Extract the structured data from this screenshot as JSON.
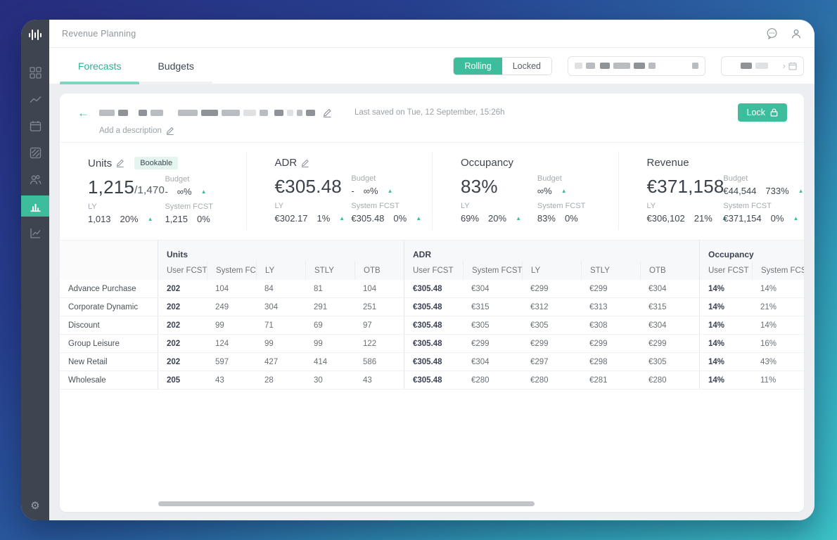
{
  "topbar": {
    "title": "Revenue Planning"
  },
  "tabs": {
    "forecasts": "Forecasts",
    "budgets": "Budgets"
  },
  "mode_toggle": {
    "rolling": "Rolling",
    "locked": "Locked"
  },
  "plan_header": {
    "last_saved": "Last saved on Tue, 12 September, 15:26h",
    "lock_label": "Lock",
    "description_placeholder": "Add a description"
  },
  "kpis": [
    {
      "title": "Units",
      "badge": "Bookable",
      "main": "1,215",
      "main_suffix": "/1,470",
      "budget": {
        "label": "Budget",
        "value": "-",
        "pct": "∞%",
        "trend": "up"
      },
      "ly": {
        "label": "LY",
        "value": "1,013",
        "pct": "20%",
        "trend": "up"
      },
      "system": {
        "label": "System FCST",
        "value": "1,215",
        "pct": "0%",
        "trend": "none"
      }
    },
    {
      "title": "ADR",
      "main": "€305.48",
      "main_suffix": "",
      "budget": {
        "label": "Budget",
        "value": "-",
        "pct": "∞%",
        "trend": "up"
      },
      "ly": {
        "label": "LY",
        "value": "€302.17",
        "pct": "1%",
        "trend": "up"
      },
      "system": {
        "label": "System FCST",
        "value": "€305.48",
        "pct": "0%",
        "trend": "up"
      }
    },
    {
      "title": "Occupancy",
      "main": "83%",
      "main_suffix": "",
      "budget": {
        "label": "Budget",
        "value": "",
        "pct": "∞%",
        "trend": "up"
      },
      "ly": {
        "label": "LY",
        "value": "69%",
        "pct": "20%",
        "trend": "up"
      },
      "system": {
        "label": "System FCST",
        "value": "83%",
        "pct": "0%",
        "trend": "none"
      }
    },
    {
      "title": "Revenue",
      "main": "€371,158",
      "main_suffix": "",
      "budget": {
        "label": "Budget",
        "value": "€44,544",
        "pct": "733%",
        "trend": "up"
      },
      "ly": {
        "label": "LY",
        "value": "€306,102",
        "pct": "21%",
        "trend": "up"
      },
      "system": {
        "label": "System FCST",
        "value": "€371,154",
        "pct": "0%",
        "trend": "up"
      }
    }
  ],
  "table": {
    "groups": [
      {
        "name": "Units",
        "cols": [
          "User FCST",
          "System FCST",
          "LY",
          "STLY",
          "OTB"
        ]
      },
      {
        "name": "ADR",
        "cols": [
          "User FCST",
          "System FCST",
          "LY",
          "STLY",
          "OTB"
        ]
      },
      {
        "name": "Occupancy",
        "cols": [
          "User FCST",
          "System FCST"
        ]
      }
    ],
    "rows": [
      {
        "label": "Advance Purchase",
        "units": [
          "202",
          "104",
          "84",
          "81",
          "104"
        ],
        "adr": [
          "€305.48",
          "€304",
          "€299",
          "€299",
          "€304"
        ],
        "occupancy": [
          "14%",
          "14%"
        ]
      },
      {
        "label": "Corporate Dynamic",
        "units": [
          "202",
          "249",
          "304",
          "291",
          "251"
        ],
        "adr": [
          "€305.48",
          "€315",
          "€312",
          "€313",
          "€315"
        ],
        "occupancy": [
          "14%",
          "21%"
        ]
      },
      {
        "label": "Discount",
        "units": [
          "202",
          "99",
          "71",
          "69",
          "97"
        ],
        "adr": [
          "€305.48",
          "€305",
          "€305",
          "€308",
          "€304"
        ],
        "occupancy": [
          "14%",
          "14%"
        ]
      },
      {
        "label": "Group Leisure",
        "units": [
          "202",
          "124",
          "99",
          "99",
          "122"
        ],
        "adr": [
          "€305.48",
          "€299",
          "€299",
          "€299",
          "€299"
        ],
        "occupancy": [
          "14%",
          "16%"
        ]
      },
      {
        "label": "New Retail",
        "units": [
          "202",
          "597",
          "427",
          "414",
          "586"
        ],
        "adr": [
          "€305.48",
          "€304",
          "€297",
          "€298",
          "€305"
        ],
        "occupancy": [
          "14%",
          "43%"
        ]
      },
      {
        "label": "Wholesale",
        "units": [
          "205",
          "43",
          "28",
          "30",
          "43"
        ],
        "adr": [
          "€305.48",
          "€280",
          "€280",
          "€281",
          "€280"
        ],
        "occupancy": [
          "14%",
          "11%"
        ]
      }
    ]
  },
  "colors": {
    "accent": "#3dbd9b",
    "sidebar_bg": "#3e4450"
  }
}
